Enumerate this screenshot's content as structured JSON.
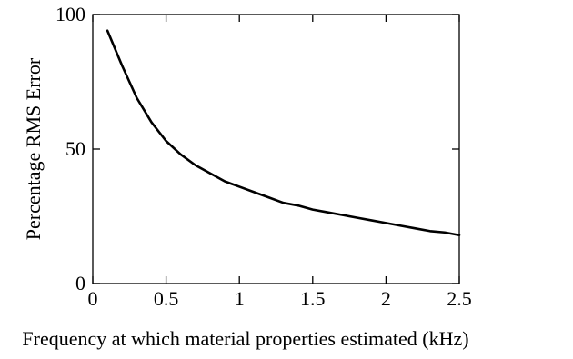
{
  "chart_data": {
    "type": "line",
    "title": "",
    "xlabel": "Frequency at which material properties estimated (kHz)",
    "ylabel": "Percentage RMS Error",
    "xlim": [
      0,
      2.5
    ],
    "ylim": [
      0,
      100
    ],
    "grid": false,
    "legend": "none",
    "x_ticks": [
      0,
      0.5,
      1,
      1.5,
      2,
      2.5
    ],
    "x_tick_labels": [
      "0",
      "0.5",
      "1",
      "1.5",
      "2",
      "2.5"
    ],
    "y_ticks": [
      0,
      50,
      100
    ],
    "y_tick_labels": [
      "0",
      "50",
      "100"
    ],
    "series": [
      {
        "color": "#000000",
        "x": [
          0.1,
          0.2,
          0.3,
          0.4,
          0.5,
          0.6,
          0.7,
          0.8,
          0.9,
          1.0,
          1.1,
          1.2,
          1.3,
          1.4,
          1.5,
          1.6,
          1.7,
          1.8,
          1.9,
          2.0,
          2.1,
          2.2,
          2.3,
          2.4,
          2.5
        ],
        "y": [
          94,
          81,
          69,
          60,
          53,
          48,
          44,
          41,
          38,
          36,
          34,
          32,
          30,
          29,
          27.5,
          26.5,
          25.5,
          24.5,
          23.5,
          22.5,
          21.5,
          20.5,
          19.5,
          19,
          18
        ]
      }
    ]
  }
}
